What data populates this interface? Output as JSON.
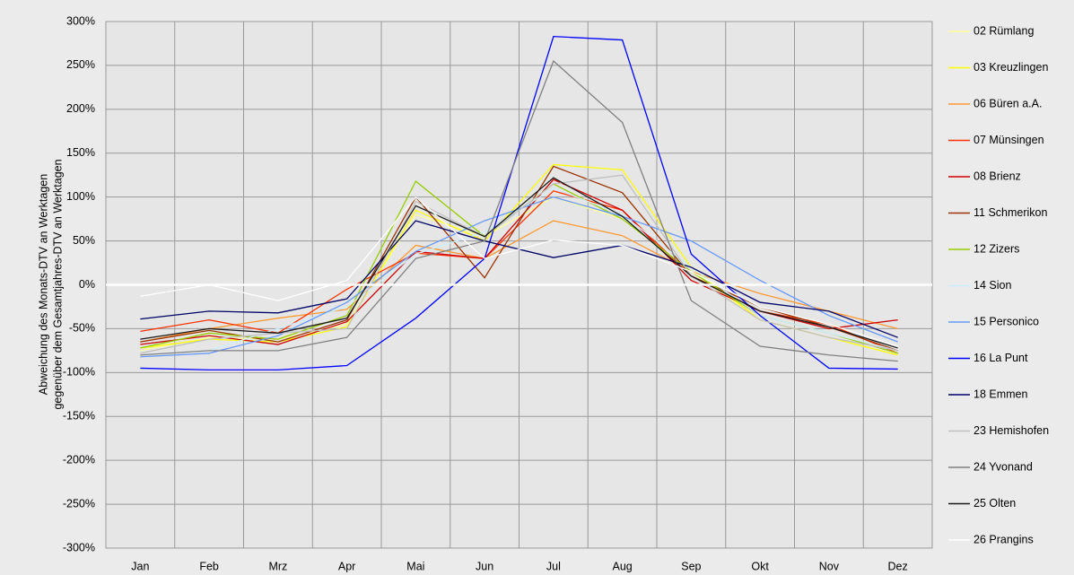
{
  "chart_data": {
    "type": "line",
    "ylabel": [
      "Abweichung des Monats-DTV an Werktagen",
      "gegenüber dem Gesamtjahres-DTV an Werktagen"
    ],
    "categories": [
      "Jan",
      "Feb",
      "Mrz",
      "Apr",
      "Mai",
      "Jun",
      "Jul",
      "Aug",
      "Sep",
      "Okt",
      "Nov",
      "Dez"
    ],
    "ylim": [
      -300,
      300
    ],
    "yticks": [
      {
        "value": -300,
        "label": "-300%"
      },
      {
        "value": -250,
        "label": "-250%"
      },
      {
        "value": -200,
        "label": "-200%"
      },
      {
        "value": -150,
        "label": "-150%"
      },
      {
        "value": -100,
        "label": "-100%"
      },
      {
        "value": -50,
        "label": "-50%"
      },
      {
        "value": 0,
        "label": "0%"
      },
      {
        "value": 50,
        "label": "50%"
      },
      {
        "value": 100,
        "label": "100%"
      },
      {
        "value": 150,
        "label": "150%"
      },
      {
        "value": 200,
        "label": "200%"
      },
      {
        "value": 250,
        "label": "250%"
      },
      {
        "value": 300,
        "label": "300%"
      }
    ],
    "grid": true,
    "legend": "right",
    "series": [
      {
        "name": "02 Rümlang",
        "color": "#ffff99",
        "values": [
          -75,
          -60,
          -62,
          -45,
          80,
          55,
          100,
          75,
          15,
          -40,
          -60,
          -80
        ]
      },
      {
        "name": "03 Kreuzlingen",
        "color": "#ffff00",
        "values": [
          -72,
          -62,
          -65,
          -48,
          85,
          50,
          137,
          131,
          20,
          -40,
          -60,
          -80
        ]
      },
      {
        "name": "06 Büren a.A.",
        "color": "#ff9933",
        "values": [
          -65,
          -50,
          -38,
          -28,
          45,
          30,
          73,
          56,
          15,
          -10,
          -30,
          -50
        ]
      },
      {
        "name": "07 Münsingen",
        "color": "#ff3300",
        "values": [
          -53,
          -40,
          -55,
          -5,
          36,
          30,
          107,
          85,
          10,
          -30,
          -45,
          -78
        ]
      },
      {
        "name": "08 Brienz",
        "color": "#cc0000",
        "values": [
          -68,
          -58,
          -68,
          -42,
          38,
          30,
          120,
          85,
          5,
          -30,
          -50,
          -40
        ]
      },
      {
        "name": "11 Schmerikon",
        "color": "#993300",
        "values": [
          -65,
          -52,
          -65,
          -40,
          100,
          8,
          135,
          105,
          10,
          -25,
          -48,
          -75
        ]
      },
      {
        "name": "12 Zizers",
        "color": "#99cc00",
        "values": [
          -72,
          -55,
          -62,
          -35,
          118,
          55,
          115,
          75,
          15,
          -35,
          -55,
          -78
        ]
      },
      {
        "name": "14 Sion",
        "color": "#ccecff",
        "values": [
          -80,
          -75,
          -50,
          -25,
          35,
          60,
          110,
          80,
          20,
          -35,
          -55,
          -75
        ]
      },
      {
        "name": "15 Personico",
        "color": "#6699ff",
        "values": [
          -82,
          -78,
          -58,
          -20,
          38,
          73,
          100,
          78,
          50,
          5,
          -35,
          -65
        ]
      },
      {
        "name": "16 La Punt",
        "color": "#0000ff",
        "values": [
          -95,
          -97,
          -97,
          -92,
          -38,
          30,
          283,
          279,
          35,
          -35,
          -95,
          -96
        ]
      },
      {
        "name": "18 Emmen",
        "color": "#000066",
        "values": [
          -39,
          -30,
          -32,
          -16,
          73,
          50,
          31,
          45,
          20,
          -20,
          -30,
          -60
        ]
      },
      {
        "name": "23 Hemishofen",
        "color": "#c0c0c0",
        "values": [
          -78,
          -62,
          -55,
          -50,
          95,
          55,
          115,
          125,
          10,
          -40,
          -60,
          -75
        ]
      },
      {
        "name": "24 Yvonand",
        "color": "#808080",
        "values": [
          -80,
          -75,
          -75,
          -60,
          30,
          50,
          255,
          185,
          -18,
          -70,
          -80,
          -87
        ]
      },
      {
        "name": "25 Olten",
        "color": "#1a1a1a",
        "values": [
          -62,
          -50,
          -55,
          -38,
          90,
          55,
          122,
          78,
          10,
          -30,
          -48,
          -72
        ]
      },
      {
        "name": "26 Prangins",
        "color": "#ffffff",
        "values": [
          -13,
          0,
          -18,
          5,
          100,
          30,
          51,
          45,
          15,
          -25,
          -45,
          -70
        ]
      }
    ]
  }
}
